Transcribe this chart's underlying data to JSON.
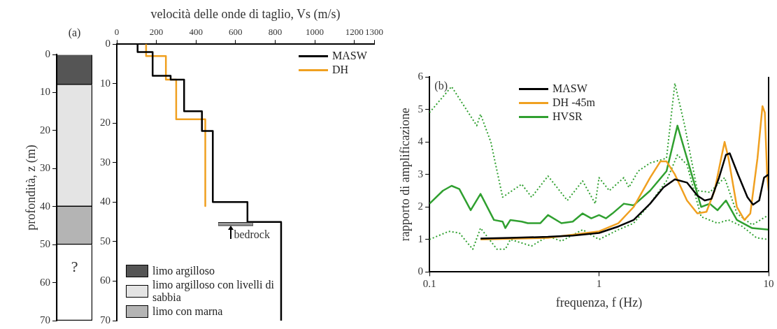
{
  "chart_data": [
    {
      "type": "bar",
      "stacked": true,
      "categories": [
        null
      ],
      "ylabel": "profondità, z (m)",
      "ylim": [
        70,
        0
      ],
      "yticks": [
        0,
        10,
        20,
        30,
        40,
        50,
        60,
        70
      ],
      "tick_labels": "y",
      "grid": false,
      "legend": "bottom right",
      "annotations": [
        "(a)",
        "?"
      ],
      "series": [
        {
          "name": "limo argilloso",
          "color": "#555555",
          "values": [
            8
          ]
        },
        {
          "name": "limo argilloso con livelli di sabbia",
          "color": "#e4e4e4",
          "values": [
            32
          ]
        },
        {
          "name": "limo con marna",
          "color": "#b4b4b4",
          "values": [
            10
          ]
        },
        {
          "color": "#ffffff",
          "values": [
            20
          ]
        }
      ]
    },
    {
      "type": "line",
      "xlabel": "velocità delle onde di taglio, Vs (m/s)",
      "xlim": [
        0,
        1300
      ],
      "xticks": [
        0,
        200,
        400,
        600,
        800,
        1000,
        1200,
        1300
      ],
      "ylim": [
        70,
        0
      ],
      "yticks": [
        0,
        10,
        20,
        30,
        40,
        50,
        60,
        70
      ],
      "grid": false,
      "legend": "top right",
      "marker": "none",
      "annotations": [
        "bedrock"
      ],
      "series": [
        {
          "name": "MASW",
          "color": "#000000",
          "x": [
            105,
            105,
            181,
            181,
            272,
            272,
            340,
            340,
            430,
            430,
            485,
            485,
            660,
            660,
            830,
            830
          ],
          "values": [
            0,
            2,
            2,
            8,
            8,
            9,
            9,
            17,
            17,
            22,
            22,
            40,
            40,
            45,
            45,
            70
          ]
        },
        {
          "name": "DH",
          "color": "#f0a020",
          "x": [
            148,
            148,
            248,
            248,
            300,
            300,
            447,
            447
          ],
          "values": [
            0,
            3,
            3,
            9,
            9,
            19,
            19,
            41
          ]
        }
      ]
    },
    {
      "type": "line",
      "xlabel": "frequenza, f (Hz)",
      "ylabel": "rapporto di amplificazione",
      "log": "x",
      "xlim": [
        0.1,
        10
      ],
      "xticks": [
        0.1,
        1,
        10
      ],
      "ylim": [
        0,
        6
      ],
      "yticks": [
        0,
        1,
        2,
        3,
        4,
        5,
        6
      ],
      "grid": false,
      "legend": "top",
      "marker": "none",
      "annotations": [
        "(b)"
      ],
      "series": [
        {
          "name": "MASW",
          "color": "#000000",
          "x": [
            0.2,
            0.3,
            0.5,
            0.7,
            1.0,
            1.3,
            1.6,
            2.0,
            2.4,
            2.8,
            3.3,
            3.8,
            4.2,
            4.6,
            5.1,
            5.6,
            5.9,
            6.6,
            7.5,
            8.1,
            8.8,
            9.4,
            10
          ],
          "values": [
            1.03,
            1.05,
            1.08,
            1.12,
            1.2,
            1.4,
            1.6,
            2.1,
            2.6,
            2.85,
            2.75,
            2.35,
            2.2,
            2.25,
            2.9,
            3.6,
            3.65,
            3.0,
            2.3,
            2.07,
            2.2,
            2.9,
            3.0
          ]
        },
        {
          "name": "DH  -45m",
          "color": "#f0a020",
          "x": [
            0.2,
            0.5,
            1.0,
            1.3,
            1.6,
            2.0,
            2.3,
            2.5,
            2.8,
            3.3,
            3.8,
            4.3,
            4.8,
            5.3,
            5.5,
            5.8,
            6.5,
            7.2,
            7.8,
            8.6,
            9.2,
            9.5,
            9.8,
            10
          ],
          "values": [
            1.0,
            1.05,
            1.25,
            1.5,
            2.0,
            2.9,
            3.4,
            3.4,
            3.0,
            2.2,
            1.8,
            1.85,
            2.5,
            3.6,
            4.0,
            3.5,
            2.0,
            1.6,
            1.8,
            3.5,
            5.1,
            4.9,
            3.0,
            2.5
          ]
        },
        {
          "name": "HVSR",
          "color": "#30a030",
          "x": [
            0.1,
            0.12,
            0.135,
            0.15,
            0.175,
            0.2,
            0.24,
            0.27,
            0.28,
            0.3,
            0.35,
            0.38,
            0.45,
            0.5,
            0.6,
            0.7,
            0.8,
            0.9,
            1.0,
            1.1,
            1.2,
            1.4,
            1.6,
            2.0,
            2.5,
            2.9,
            3.3,
            4.0,
            4.5,
            5.0,
            5.6,
            6.5,
            8,
            10
          ],
          "values": [
            2.1,
            2.5,
            2.65,
            2.55,
            1.9,
            2.4,
            1.6,
            1.55,
            1.35,
            1.6,
            1.55,
            1.5,
            1.5,
            1.75,
            1.5,
            1.55,
            1.8,
            1.65,
            1.75,
            1.65,
            1.8,
            2.1,
            2.05,
            2.5,
            3.1,
            4.5,
            3.5,
            2.0,
            2.1,
            1.9,
            2.2,
            1.6,
            1.35,
            1.3
          ]
        },
        {
          "color": "#30a030",
          "line_style": "dotted",
          "x": [
            0.1,
            0.135,
            0.19,
            0.2,
            0.23,
            0.27,
            0.35,
            0.4,
            0.5,
            0.65,
            0.8,
            0.95,
            1.0,
            1.15,
            1.4,
            1.5,
            1.7,
            2.0,
            2.5,
            2.8,
            3.2,
            3.8,
            4.5,
            5.5,
            6.5,
            8,
            10
          ],
          "values": [
            4.9,
            5.7,
            4.5,
            4.85,
            4.0,
            2.3,
            2.7,
            2.3,
            2.95,
            2.2,
            2.8,
            2.1,
            2.9,
            2.5,
            2.9,
            2.6,
            3.1,
            3.35,
            3.5,
            5.8,
            4.5,
            2.5,
            2.45,
            2.9,
            1.8,
            1.45,
            1.75
          ]
        },
        {
          "color": "#30a030",
          "line_style": "dotted",
          "x": [
            0.1,
            0.13,
            0.15,
            0.18,
            0.2,
            0.25,
            0.28,
            0.3,
            0.4,
            0.5,
            0.6,
            0.8,
            1.0,
            1.3,
            1.6,
            2.0,
            2.5,
            2.9,
            3.3,
            4.0,
            5.0,
            5.8,
            7,
            8.5,
            10
          ],
          "values": [
            1.0,
            1.25,
            1.2,
            0.7,
            1.35,
            0.7,
            0.7,
            1.0,
            0.8,
            1.1,
            0.95,
            1.3,
            1.0,
            1.3,
            1.5,
            2.1,
            2.8,
            3.6,
            3.3,
            1.7,
            1.5,
            1.6,
            1.4,
            1.05,
            1.0
          ]
        }
      ]
    }
  ]
}
